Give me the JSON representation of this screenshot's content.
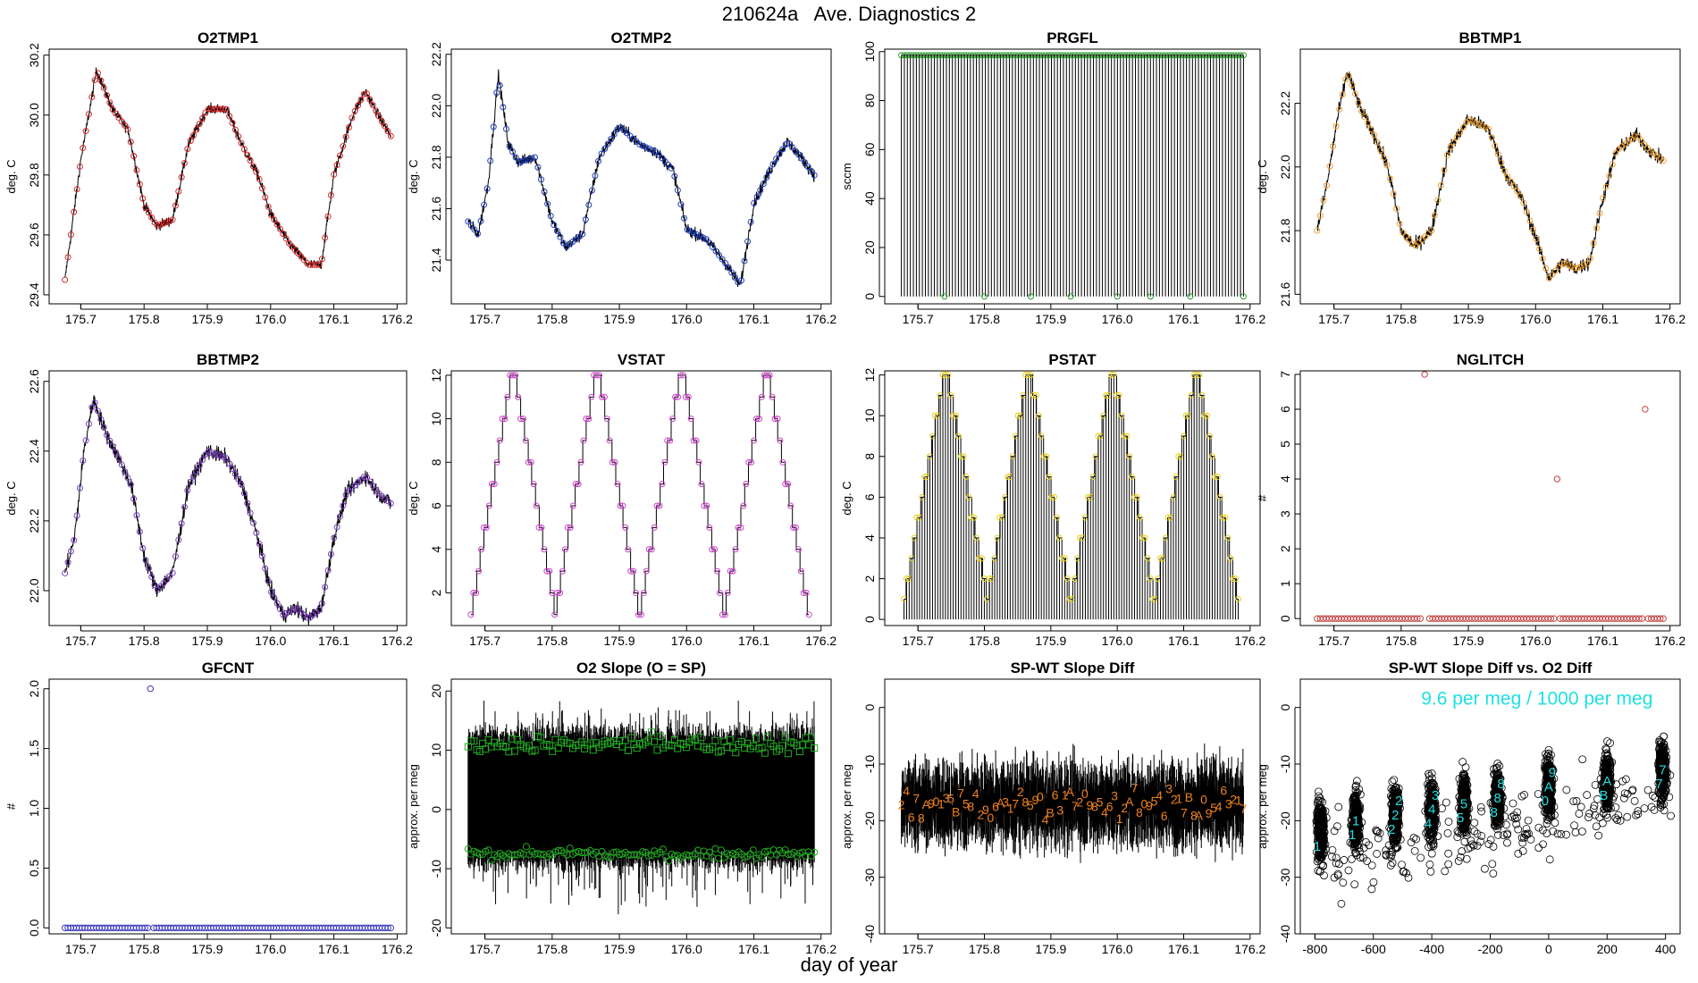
{
  "figure": {
    "title": "210624a   Ave. Diagnostics 2",
    "xlabel": "day of year"
  },
  "chart_data": [
    {
      "id": "o2tmp1",
      "title": "O2TMP1",
      "type": "line",
      "ylabel": "deg. C",
      "xlim": [
        175.65,
        176.215
      ],
      "ylim": [
        29.37,
        30.22
      ],
      "xticks": [
        175.7,
        175.8,
        175.9,
        176.0,
        176.1,
        176.2
      ],
      "xtick_labels": [
        "175.7",
        "175.8",
        "175.9",
        "176.0",
        "176.1",
        "176.2"
      ],
      "yticks": [
        29.4,
        29.6,
        29.8,
        30.0,
        30.2
      ],
      "ytick_labels": [
        "29.4",
        "29.6",
        "29.8",
        "30.0",
        "30.2"
      ],
      "line_color": "#000000",
      "marker_color": "#d62728",
      "marker": "circle",
      "x": [
        175.675,
        175.7,
        175.725,
        175.75,
        175.775,
        175.8,
        175.82,
        175.845,
        175.87,
        175.9,
        175.93,
        175.955,
        175.98,
        176.0,
        176.03,
        176.06,
        176.08,
        176.1,
        176.13,
        176.15,
        176.17,
        176.19
      ],
      "y": [
        29.45,
        29.85,
        30.15,
        30.02,
        29.95,
        29.7,
        29.63,
        29.65,
        29.9,
        30.02,
        30.02,
        29.9,
        29.8,
        29.67,
        29.57,
        29.5,
        29.5,
        29.8,
        30.0,
        30.08,
        30.0,
        29.93
      ],
      "noise": 0.03
    },
    {
      "id": "o2tmp2",
      "title": "O2TMP2",
      "type": "line",
      "ylabel": "deg. C",
      "xlim": [
        175.65,
        176.215
      ],
      "ylim": [
        21.23,
        22.22
      ],
      "xticks": [
        175.7,
        175.8,
        175.9,
        176.0,
        176.1,
        176.2
      ],
      "xtick_labels": [
        "175.7",
        "175.8",
        "175.9",
        "176.0",
        "176.1",
        "176.2"
      ],
      "yticks": [
        21.4,
        21.6,
        21.8,
        22.0,
        22.2
      ],
      "ytick_labels": [
        "21.4",
        "21.6",
        "21.8",
        "22.0",
        "22.2"
      ],
      "line_color": "#000000",
      "marker_color": "#1f3fbf",
      "marker": "circle",
      "x": [
        175.675,
        175.69,
        175.705,
        175.72,
        175.735,
        175.75,
        175.775,
        175.8,
        175.82,
        175.845,
        175.87,
        175.9,
        175.93,
        175.955,
        175.98,
        176.0,
        176.03,
        176.06,
        176.08,
        176.1,
        176.13,
        176.15,
        176.17,
        176.19
      ],
      "y": [
        21.55,
        21.5,
        21.7,
        22.12,
        21.85,
        21.78,
        21.8,
        21.55,
        21.45,
        21.5,
        21.8,
        21.92,
        21.85,
        21.82,
        21.75,
        21.52,
        21.48,
        21.38,
        21.3,
        21.62,
        21.78,
        21.86,
        21.8,
        21.73
      ],
      "noise": 0.04
    },
    {
      "id": "prgfl",
      "title": "PRGFL",
      "type": "spikes",
      "ylabel": "sccm",
      "xlim": [
        175.65,
        176.215
      ],
      "ylim": [
        -3,
        101
      ],
      "xticks": [
        175.7,
        175.8,
        175.9,
        176.0,
        176.1,
        176.2
      ],
      "xtick_labels": [
        "175.7",
        "175.8",
        "175.9",
        "176.0",
        "176.1",
        "176.2"
      ],
      "yticks": [
        0,
        20,
        40,
        60,
        80,
        100
      ],
      "ytick_labels": [
        "0",
        "20",
        "40",
        "60",
        "80",
        "100"
      ],
      "line_color": "#000000",
      "marker_color": "#2a9d2a",
      "marker": "circle",
      "x_start": 175.675,
      "x_end": 176.19,
      "count": 115,
      "high": 98.5,
      "low": 0,
      "zero_points_x": [
        175.74,
        175.8,
        175.87,
        175.93,
        176.0,
        176.05,
        176.11,
        176.19
      ]
    },
    {
      "id": "bbtmp1",
      "title": "BBTMP1",
      "type": "line",
      "ylabel": "deg. C",
      "xlim": [
        175.65,
        176.215
      ],
      "ylim": [
        21.57,
        22.37
      ],
      "xticks": [
        175.7,
        175.8,
        175.9,
        176.0,
        176.1,
        176.2
      ],
      "xtick_labels": [
        "175.7",
        "175.8",
        "175.9",
        "176.0",
        "176.1",
        "176.2"
      ],
      "yticks": [
        21.6,
        21.8,
        22.0,
        22.2
      ],
      "ytick_labels": [
        "21.6",
        "21.8",
        "22.0",
        "22.2"
      ],
      "line_color": "#000000",
      "marker_color": "#f0a030",
      "marker": "circle",
      "x": [
        175.675,
        175.69,
        175.705,
        175.72,
        175.74,
        175.76,
        175.78,
        175.8,
        175.82,
        175.845,
        175.87,
        175.9,
        175.93,
        175.955,
        175.98,
        176.0,
        176.02,
        176.04,
        176.06,
        176.08,
        176.1,
        176.12,
        176.15,
        176.17,
        176.19
      ],
      "y": [
        21.8,
        21.95,
        22.15,
        22.3,
        22.18,
        22.1,
        22.0,
        21.8,
        21.75,
        21.8,
        22.05,
        22.15,
        22.12,
        21.98,
        21.9,
        21.78,
        21.65,
        21.7,
        21.68,
        21.7,
        21.9,
        22.05,
        22.1,
        22.05,
        22.02
      ],
      "noise": 0.04
    },
    {
      "id": "bbtmp2",
      "title": "BBTMP2",
      "type": "line",
      "ylabel": "deg. C",
      "xlim": [
        175.65,
        176.215
      ],
      "ylim": [
        21.9,
        22.63
      ],
      "xticks": [
        175.7,
        175.8,
        175.9,
        176.0,
        176.1,
        176.2
      ],
      "xtick_labels": [
        "175.7",
        "175.8",
        "175.9",
        "176.0",
        "176.1",
        "176.2"
      ],
      "yticks": [
        22.0,
        22.2,
        22.4,
        22.6
      ],
      "ytick_labels": [
        "22.0",
        "22.2",
        "22.4",
        "22.6"
      ],
      "line_color": "#000000",
      "marker_color": "#7b3fbf",
      "marker": "circle",
      "x": [
        175.675,
        175.69,
        175.705,
        175.72,
        175.74,
        175.76,
        175.78,
        175.8,
        175.82,
        175.845,
        175.87,
        175.9,
        175.93,
        175.955,
        175.98,
        176.0,
        176.02,
        176.04,
        176.06,
        176.08,
        176.1,
        176.12,
        176.15,
        176.17,
        176.19
      ],
      "y": [
        22.05,
        22.15,
        22.4,
        22.55,
        22.45,
        22.38,
        22.3,
        22.1,
        22.0,
        22.05,
        22.3,
        22.4,
        22.38,
        22.3,
        22.15,
        22.0,
        21.93,
        21.95,
        21.92,
        21.95,
        22.15,
        22.28,
        22.33,
        22.28,
        22.25
      ],
      "noise": 0.04
    },
    {
      "id": "vstat",
      "title": "VSTAT",
      "type": "staircase",
      "ylabel": "deg. C",
      "xlim": [
        175.65,
        176.215
      ],
      "ylim": [
        0.5,
        12.2
      ],
      "xticks": [
        175.7,
        175.8,
        175.9,
        176.0,
        176.1,
        176.2
      ],
      "xtick_labels": [
        "175.7",
        "175.8",
        "175.9",
        "176.0",
        "176.1",
        "176.2"
      ],
      "yticks": [
        2,
        4,
        6,
        8,
        10,
        12
      ],
      "ytick_labels": [
        "2",
        "4",
        "6",
        "8",
        "10",
        "12"
      ],
      "line_color": "#000000",
      "marker_color": "#cc44cc",
      "marker": "circle",
      "cycle_starts": [
        175.679,
        175.804,
        175.93,
        176.056
      ],
      "cycle_length": 0.126,
      "max_level": 12,
      "min_level": 1
    },
    {
      "id": "pstat",
      "title": "PSTAT",
      "type": "stairspikes",
      "ylabel": "deg. C",
      "xlim": [
        175.65,
        176.215
      ],
      "ylim": [
        -0.3,
        12.2
      ],
      "xticks": [
        175.7,
        175.8,
        175.9,
        176.0,
        176.1,
        176.2
      ],
      "xtick_labels": [
        "175.7",
        "175.8",
        "175.9",
        "176.0",
        "176.1",
        "176.2"
      ],
      "yticks": [
        0,
        2,
        4,
        6,
        8,
        10,
        12
      ],
      "ytick_labels": [
        "0",
        "2",
        "4",
        "6",
        "8",
        "10",
        "12"
      ],
      "line_color": "#000000",
      "marker_color": "#e8d020",
      "marker": "circle",
      "cycle_starts": [
        175.679,
        175.804,
        175.93,
        176.056
      ],
      "cycle_length": 0.126,
      "max_level": 12,
      "min_level": 1
    },
    {
      "id": "nglitch",
      "title": "NGLITCH",
      "type": "scatter",
      "ylabel": "#",
      "xlim": [
        175.65,
        176.215
      ],
      "ylim": [
        -0.2,
        7.1
      ],
      "xticks": [
        175.7,
        175.8,
        175.9,
        176.0,
        176.1,
        176.2
      ],
      "xtick_labels": [
        "175.7",
        "175.8",
        "175.9",
        "176.0",
        "176.1",
        "176.2"
      ],
      "yticks": [
        0,
        1,
        2,
        3,
        4,
        5,
        6,
        7
      ],
      "ytick_labels": [
        "0",
        "1",
        "2",
        "3",
        "4",
        "5",
        "6",
        "7"
      ],
      "marker_color": "#c04040",
      "marker": "circle",
      "baseline_x_start": 175.675,
      "baseline_x_end": 176.19,
      "baseline_count": 115,
      "baseline_value": 0,
      "gaps_x": [
        175.835,
        176.032,
        176.163
      ],
      "outliers": [
        {
          "x": 175.835,
          "y": 7
        },
        {
          "x": 176.032,
          "y": 4
        },
        {
          "x": 176.163,
          "y": 6
        }
      ]
    },
    {
      "id": "gfcnt",
      "title": "GFCNT",
      "type": "scatter",
      "ylabel": "#",
      "xlim": [
        175.65,
        176.215
      ],
      "ylim": [
        -0.05,
        2.08
      ],
      "xticks": [
        175.7,
        175.8,
        175.9,
        176.0,
        176.1,
        176.2
      ],
      "xtick_labels": [
        "175.7",
        "175.8",
        "175.9",
        "176.0",
        "176.1",
        "176.2"
      ],
      "yticks": [
        0.0,
        0.5,
        1.0,
        1.5,
        2.0
      ],
      "ytick_labels": [
        "0.0",
        "0.5",
        "1.0",
        "1.5",
        "2.0"
      ],
      "marker_color": "#3535b5",
      "marker": "circle",
      "baseline_x_start": 175.675,
      "baseline_x_end": 176.19,
      "baseline_count": 115,
      "baseline_value": 0,
      "gaps_x": [
        175.81
      ],
      "outliers": [
        {
          "x": 175.81,
          "y": 2
        }
      ]
    },
    {
      "id": "o2slope",
      "title": "O2 Slope (O = SP)",
      "type": "band",
      "ylabel": "approx. per meg",
      "xlim": [
        175.65,
        176.215
      ],
      "ylim": [
        -21,
        22
      ],
      "xticks": [
        175.7,
        175.8,
        175.9,
        176.0,
        176.1,
        176.2
      ],
      "xtick_labels": [
        "175.7",
        "175.8",
        "175.9",
        "176.0",
        "176.1",
        "176.2"
      ],
      "yticks": [
        -20,
        -10,
        0,
        10,
        20
      ],
      "ytick_labels": [
        "-20",
        "-10",
        "0",
        "10",
        "20"
      ],
      "band_color": "#000000",
      "marker_color": "#22aa22",
      "x_start": 175.675,
      "x_end": 176.19,
      "upper_mean": 12,
      "lower_mean": -8,
      "band_top": 15,
      "band_bottom": -11,
      "squares_mean": 11,
      "squares_spread": 2.5,
      "circles_mean": -7.5,
      "circles_spread": 1.5
    },
    {
      "id": "spwt",
      "title": "SP-WT Slope Diff",
      "type": "noise_with_labels",
      "ylabel": "approx. per meg",
      "xlim": [
        175.65,
        176.215
      ],
      "ylim": [
        -40,
        5
      ],
      "xticks": [
        175.7,
        175.8,
        175.9,
        176.0,
        176.1,
        176.2
      ],
      "xtick_labels": [
        "175.7",
        "175.8",
        "175.9",
        "176.0",
        "176.1",
        "176.2"
      ],
      "yticks": [
        -40,
        -30,
        -20,
        -10,
        0
      ],
      "ytick_labels": [
        "-40",
        "-30",
        "-20",
        "-10",
        "0"
      ],
      "line_color": "#000000",
      "label_color": "#ee8020",
      "x_start": 175.675,
      "x_end": 176.19,
      "mean": -17,
      "spread": 6,
      "point_labels": [
        "2",
        "4",
        "6",
        "7",
        "8",
        "A",
        "9",
        "0",
        "1",
        "3",
        "5",
        "B",
        "7",
        "5",
        "8",
        "4",
        "2",
        "9",
        "0",
        "6",
        "A",
        "3",
        "1",
        "7",
        "2",
        "8",
        "5",
        "9",
        "0",
        "4",
        "B",
        "6",
        "3",
        "1",
        "A",
        "7",
        "2",
        "0",
        "9",
        "8",
        "5",
        "4",
        "6",
        "3",
        "1",
        "2",
        "A",
        "7",
        "8",
        "0",
        "9",
        "5",
        "4",
        "6",
        "3",
        "2",
        "1",
        "7",
        "B",
        "8",
        "A",
        "0",
        "9",
        "5",
        "4",
        "6",
        "3",
        "2",
        "1",
        "7"
      ]
    },
    {
      "id": "spwtvso2",
      "title": "SP-WT Slope Diff vs. O2 Diff",
      "type": "scatter_clusters",
      "ylabel": "approx. per meg",
      "xlim": [
        -850,
        450
      ],
      "ylim": [
        -40,
        5
      ],
      "xticks": [
        -800,
        -600,
        -400,
        -200,
        0,
        200,
        400
      ],
      "xtick_labels": [
        "-800",
        "-600",
        "-400",
        "-200",
        "0",
        "200",
        "400"
      ],
      "yticks": [
        -40,
        -30,
        -20,
        -10,
        0
      ],
      "ytick_labels": [
        "-40",
        "-30",
        "-20",
        "-10",
        "0"
      ],
      "marker_color": "#000000",
      "label_color": "#20e0e0",
      "annotation": "9.6 per meg / 1000 per meg",
      "clusters": [
        {
          "x": -780,
          "y": -22,
          "digits": [
            "1"
          ]
        },
        {
          "x": -660,
          "y": -20,
          "digits": [
            "1",
            "1"
          ]
        },
        {
          "x": -525,
          "y": -19,
          "digits": [
            "2",
            "2",
            "2"
          ]
        },
        {
          "x": -400,
          "y": -18,
          "digits": [
            "4",
            "4",
            "3"
          ]
        },
        {
          "x": -290,
          "y": -17,
          "digits": [
            "5",
            "5"
          ]
        },
        {
          "x": -175,
          "y": -16,
          "digits": [
            "8",
            "8",
            "8"
          ]
        },
        {
          "x": 0,
          "y": -14,
          "digits": [
            "0",
            "A",
            "9"
          ]
        },
        {
          "x": 200,
          "y": -13,
          "digits": [
            "B",
            "A"
          ]
        },
        {
          "x": 390,
          "y": -11,
          "digits": [
            "7",
            "7"
          ]
        }
      ],
      "trend_slope": 0.0096
    }
  ]
}
